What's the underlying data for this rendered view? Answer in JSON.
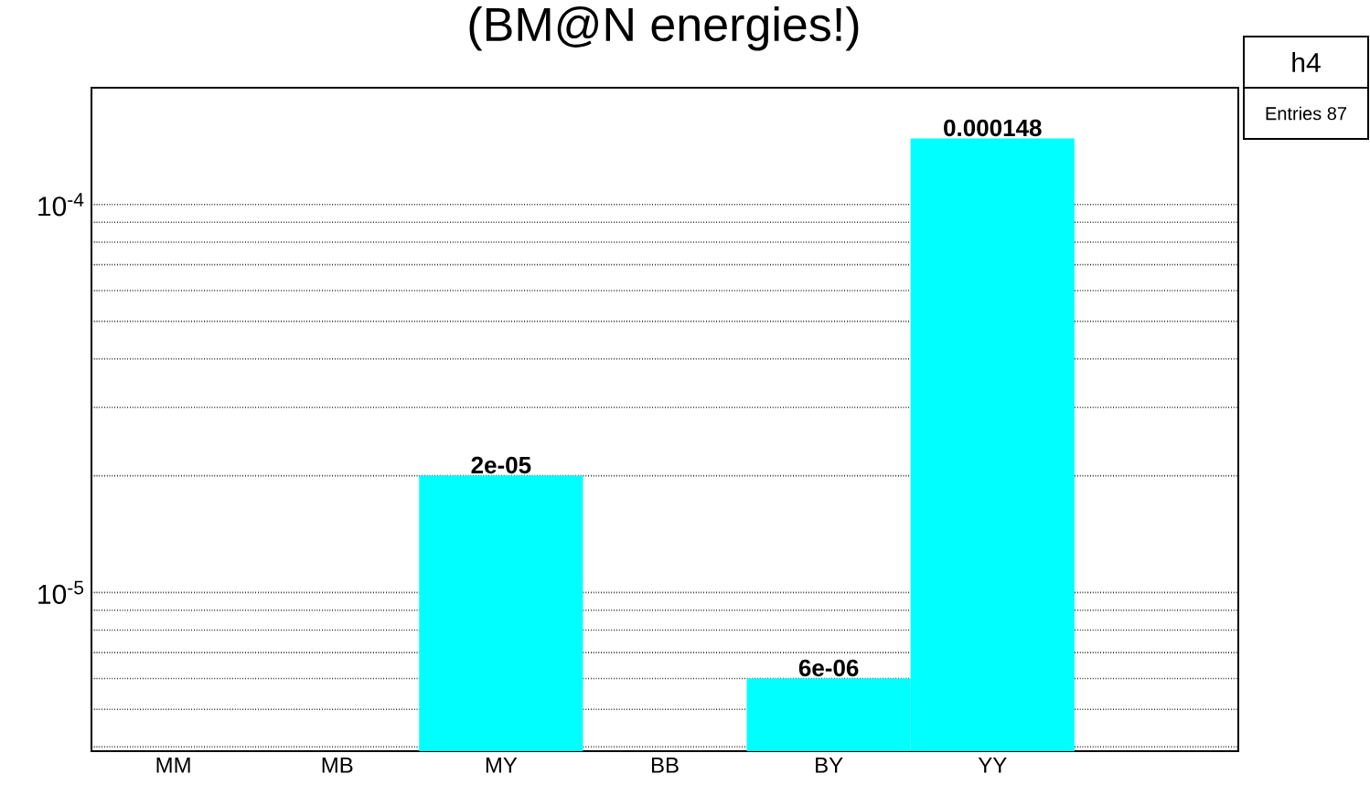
{
  "chart_data": {
    "type": "bar",
    "title": "(BM@N energies!)",
    "categories": [
      "MM",
      "MB",
      "MY",
      "BB",
      "BY",
      "YY",
      null
    ],
    "values": [
      null,
      null,
      2e-05,
      null,
      6e-06,
      0.000148,
      null
    ],
    "value_labels": [
      null,
      null,
      "2e-05",
      null,
      "6e-06",
      "0.000148",
      null
    ],
    "color": "#00ffff",
    "log": "y",
    "grid": "y",
    "ylim": [
      3.9e-06,
      0.0002
    ],
    "yticks": [
      {
        "value": 4e-06,
        "label": null
      },
      {
        "value": 5e-06,
        "label": null
      },
      {
        "value": 6e-06,
        "label": null
      },
      {
        "value": 7e-06,
        "label": null
      },
      {
        "value": 8e-06,
        "label": null
      },
      {
        "value": 9e-06,
        "label": null
      },
      {
        "value": 1e-05,
        "label": "10$^{-5}$"
      },
      {
        "value": 2e-05,
        "label": null
      },
      {
        "value": 3e-05,
        "label": null
      },
      {
        "value": 4e-05,
        "label": null
      },
      {
        "value": 5e-05,
        "label": null
      },
      {
        "value": 6e-05,
        "label": null
      },
      {
        "value": 7e-05,
        "label": null
      },
      {
        "value": 8e-05,
        "label": null
      },
      {
        "value": 9e-05,
        "label": null
      },
      {
        "value": 0.0001,
        "label": "10$^{-4}$"
      },
      {
        "value": 0.0002,
        "label": null
      }
    ],
    "annotations": [
      "h4",
      "Entries 87"
    ]
  }
}
